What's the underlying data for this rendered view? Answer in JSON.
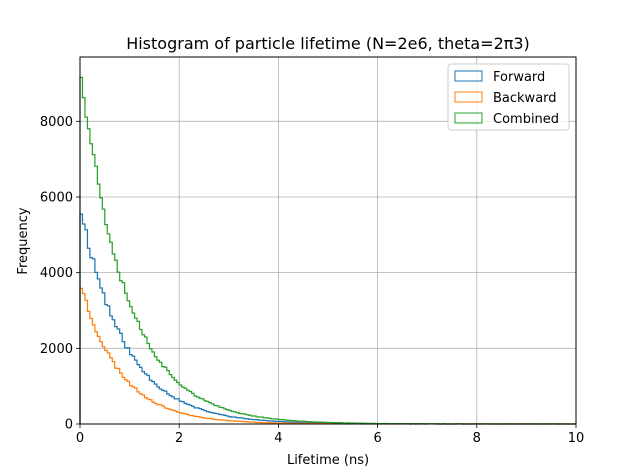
{
  "chart_data": {
    "type": "line",
    "title": "Histogram of particle lifetime (N=2e6, theta=2π3)",
    "xlabel": "Lifetime (ns)",
    "ylabel": "Frequency",
    "xlim": [
      0,
      10
    ],
    "ylim": [
      0,
      9700
    ],
    "xticks": [
      0,
      2,
      4,
      6,
      8,
      10
    ],
    "yticks": [
      0,
      2000,
      4000,
      6000,
      8000
    ],
    "grid": true,
    "legend_position": "top-right",
    "step_style": "histogram-step",
    "bin_width": 0.05,
    "series": [
      {
        "name": "Forward",
        "color": "#1f77b4",
        "model": "exponential",
        "peak": 5650,
        "tau": 0.9,
        "noise": 0.035,
        "seed": 11
      },
      {
        "name": "Backward",
        "color": "#ff7f0e",
        "model": "exponential",
        "peak": 3650,
        "tau": 0.8,
        "noise": 0.035,
        "seed": 23
      },
      {
        "name": "Combined",
        "color": "#2ca02c",
        "model": "exponential",
        "peak": 9300,
        "tau": 0.92,
        "noise": 0.03,
        "seed": 37
      }
    ]
  }
}
